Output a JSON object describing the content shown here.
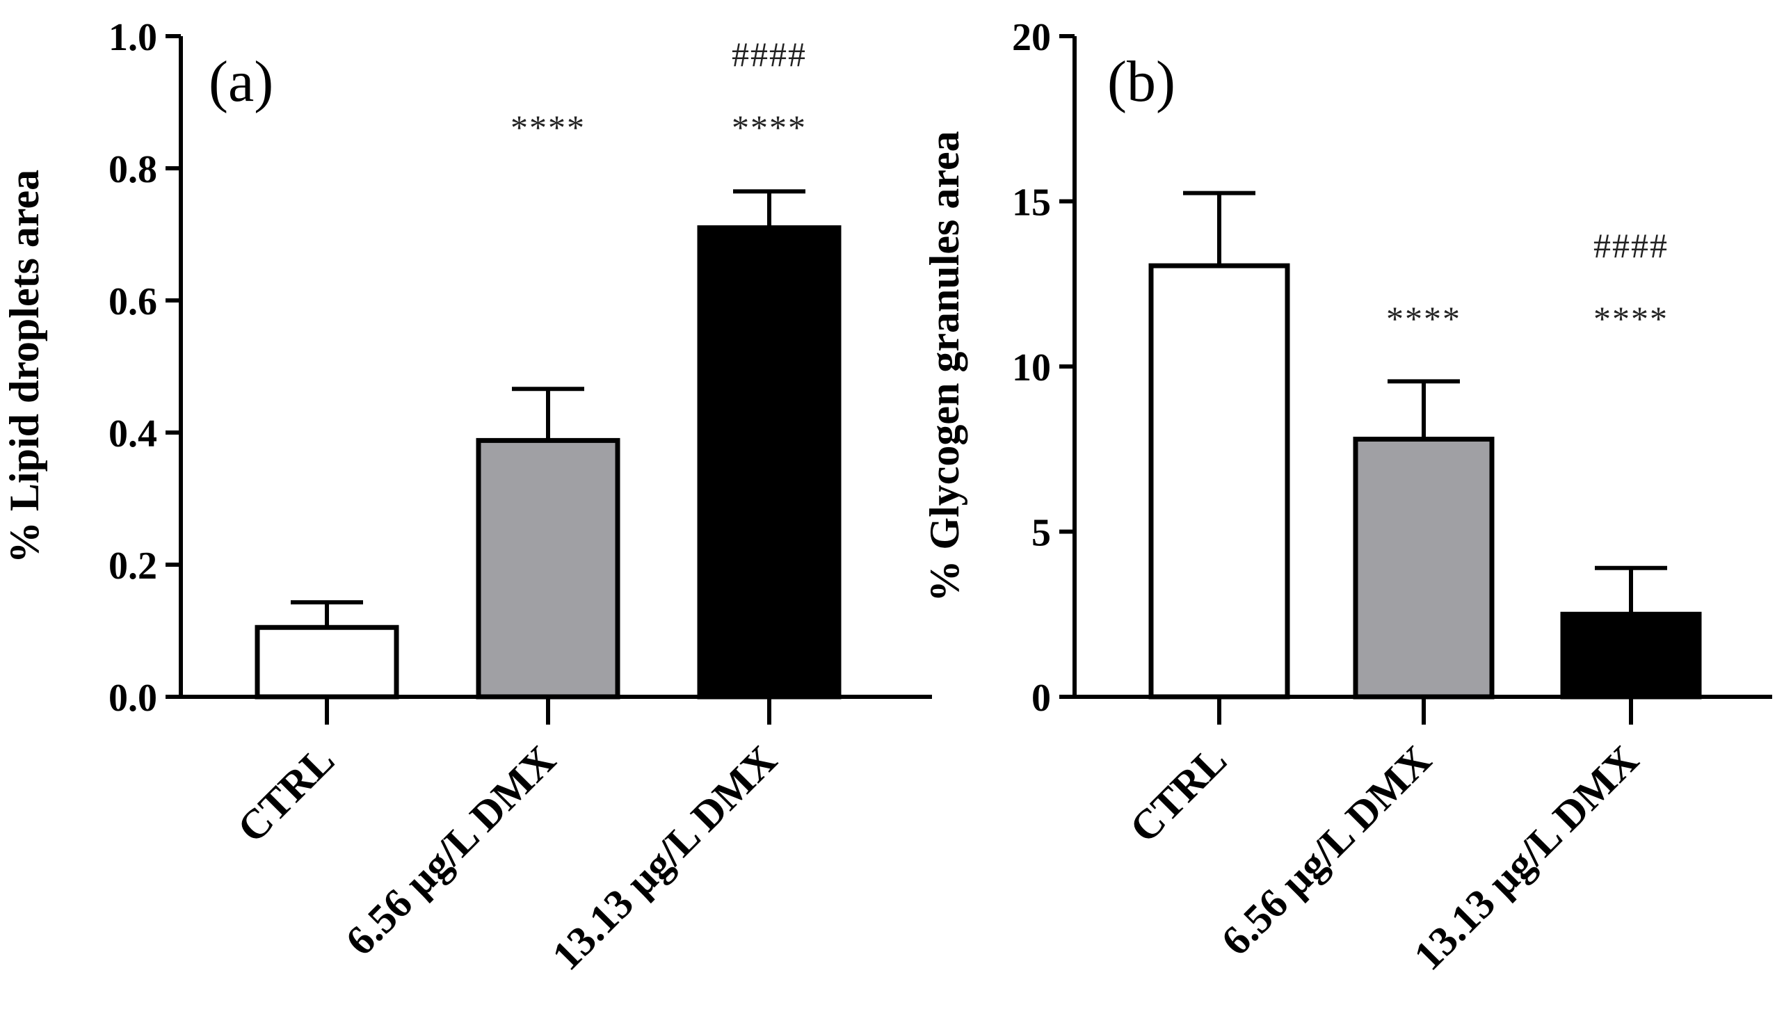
{
  "figure": {
    "colors": {
      "axis": "#000000",
      "bar_outline": "#000000"
    }
  },
  "chart_data": [
    {
      "type": "bar",
      "panel_label": "(a)",
      "ylabel": "% Lipid droplets area",
      "xlabel": "",
      "ylim": [
        0,
        1.0
      ],
      "yticks": [
        0.0,
        0.2,
        0.4,
        0.6,
        0.8,
        1.0
      ],
      "ytick_labels": [
        "0.0",
        "0.2",
        "0.4",
        "0.6",
        "0.8",
        "1.0"
      ],
      "categories": [
        "CTRL",
        "6.56 µg/L DMX",
        "13.13 µg/L DMX"
      ],
      "values": [
        0.105,
        0.388,
        0.71
      ],
      "error_upper": [
        0.143,
        0.466,
        0.765
      ],
      "bar_colors": [
        "#ffffff",
        "#a0a0a4",
        "#000000"
      ],
      "annotations": [
        {
          "category_index": 1,
          "lines": [
            "****"
          ]
        },
        {
          "category_index": 2,
          "lines": [
            "####",
            "****"
          ]
        }
      ]
    },
    {
      "type": "bar",
      "panel_label": "(b)",
      "ylabel": "% Glycogen granules area",
      "xlabel": "",
      "ylim": [
        0,
        20
      ],
      "yticks": [
        0,
        5,
        10,
        15,
        20
      ],
      "ytick_labels": [
        "0",
        "5",
        "10",
        "15",
        "20"
      ],
      "categories": [
        "CTRL",
        "6.56 µg/L DMX",
        "13.13 µg/L DMX"
      ],
      "values": [
        13.05,
        7.8,
        2.5
      ],
      "error_upper": [
        15.25,
        9.55,
        3.9
      ],
      "bar_colors": [
        "#ffffff",
        "#a0a0a4",
        "#000000"
      ],
      "annotations": [
        {
          "category_index": 1,
          "lines": [
            "****"
          ]
        },
        {
          "category_index": 2,
          "lines": [
            "####",
            "****"
          ]
        }
      ]
    }
  ]
}
